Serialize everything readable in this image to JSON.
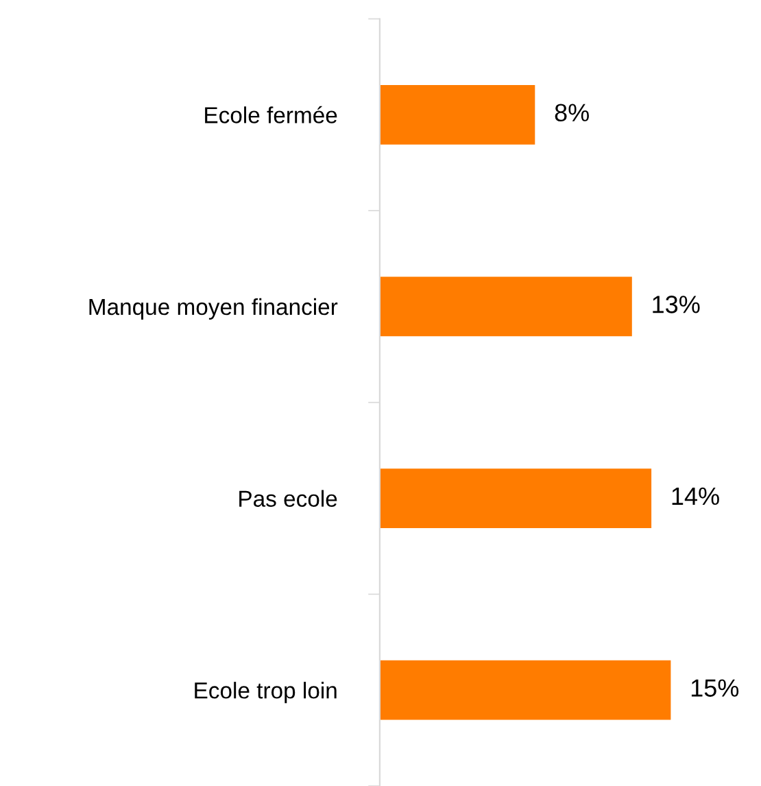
{
  "chart_data": {
    "type": "bar",
    "orientation": "horizontal",
    "categories": [
      "Ecole fermée",
      "Manque moyen financier",
      "Pas ecole",
      "Ecole trop loin"
    ],
    "values": [
      8,
      13,
      14,
      15
    ],
    "value_labels": [
      "8%",
      "13%",
      "14%",
      "15%"
    ],
    "color": "#ff7c00",
    "grid": false,
    "legend": false
  }
}
